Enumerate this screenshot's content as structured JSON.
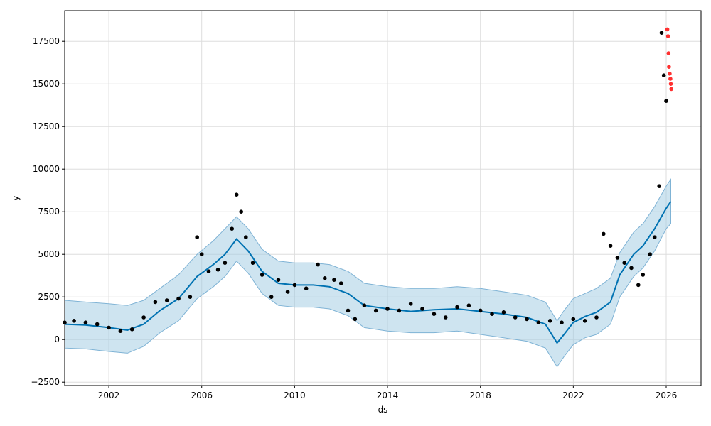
{
  "chart_data": {
    "type": "scatter",
    "xlabel": "ds",
    "ylabel": "y",
    "xlim": [
      2000.1,
      2027.5
    ],
    "ylim": [
      -2700,
      19300
    ],
    "x_ticks": [
      2002,
      2006,
      2010,
      2014,
      2018,
      2022,
      2026
    ],
    "x_tick_labels": [
      "2002",
      "2006",
      "2010",
      "2014",
      "2018",
      "2022",
      "2026"
    ],
    "y_ticks": [
      -2500,
      0,
      2500,
      5000,
      7500,
      10000,
      12500,
      15000,
      17500
    ],
    "y_tick_labels": [
      "−2500",
      "0",
      "2500",
      "5000",
      "7500",
      "10000",
      "12500",
      "15000",
      "17500"
    ],
    "grid": true,
    "colors": {
      "observed": "#000000",
      "holdout": "#ff3030",
      "forecast": "#0072b2",
      "interval": "#9ecae1",
      "interval_edge": "#7fb3d5",
      "grid": "#dddddd"
    },
    "series": [
      {
        "role": "forecast-line",
        "x": [
          2000.1,
          2001.0,
          2002.0,
          2002.8,
          2003.5,
          2004.2,
          2005.0,
          2005.8,
          2006.5,
          2007.0,
          2007.5,
          2008.0,
          2008.6,
          2009.3,
          2010.0,
          2010.8,
          2011.5,
          2012.3,
          2013.0,
          2014.0,
          2015.0,
          2016.0,
          2017.0,
          2018.0,
          2019.0,
          2020.0,
          2020.8,
          2021.3,
          2021.6,
          2022.0,
          2022.5,
          2023.0,
          2023.6,
          2024.0,
          2024.6,
          2025.0,
          2025.5,
          2026.0,
          2026.2
        ],
        "y": [
          900,
          850,
          700,
          550,
          900,
          1700,
          2400,
          3700,
          4400,
          5000,
          5900,
          5200,
          4000,
          3300,
          3200,
          3200,
          3100,
          2700,
          2000,
          1800,
          1650,
          1750,
          1800,
          1650,
          1500,
          1300,
          900,
          -200,
          300,
          1000,
          1350,
          1600,
          2200,
          3800,
          5000,
          5500,
          6500,
          7700,
          8100
        ]
      },
      {
        "role": "interval-upper",
        "x": [
          2000.1,
          2001.0,
          2002.0,
          2002.8,
          2003.5,
          2004.2,
          2005.0,
          2005.8,
          2006.5,
          2007.0,
          2007.5,
          2008.0,
          2008.6,
          2009.3,
          2010.0,
          2010.8,
          2011.5,
          2012.3,
          2013.0,
          2014.0,
          2015.0,
          2016.0,
          2017.0,
          2018.0,
          2019.0,
          2020.0,
          2020.8,
          2021.3,
          2021.6,
          2022.0,
          2022.5,
          2023.0,
          2023.6,
          2024.0,
          2024.6,
          2025.0,
          2025.5,
          2026.0,
          2026.2
        ],
        "y": [
          2300,
          2200,
          2100,
          2000,
          2300,
          3000,
          3800,
          5000,
          5800,
          6500,
          7200,
          6500,
          5300,
          4600,
          4500,
          4500,
          4400,
          4000,
          3300,
          3100,
          3000,
          3000,
          3100,
          3000,
          2800,
          2600,
          2200,
          1100,
          1700,
          2400,
          2700,
          3000,
          3600,
          5100,
          6300,
          6800,
          7800,
          9000,
          9400
        ]
      },
      {
        "role": "interval-lower",
        "x": [
          2000.1,
          2001.0,
          2002.0,
          2002.8,
          2003.5,
          2004.2,
          2005.0,
          2005.8,
          2006.5,
          2007.0,
          2007.5,
          2008.0,
          2008.6,
          2009.3,
          2010.0,
          2010.8,
          2011.5,
          2012.3,
          2013.0,
          2014.0,
          2015.0,
          2016.0,
          2017.0,
          2018.0,
          2019.0,
          2020.0,
          2020.8,
          2021.3,
          2021.6,
          2022.0,
          2022.5,
          2023.0,
          2023.6,
          2024.0,
          2024.6,
          2025.0,
          2025.5,
          2026.0,
          2026.2
        ],
        "y": [
          -500,
          -550,
          -700,
          -800,
          -400,
          400,
          1100,
          2400,
          3100,
          3700,
          4600,
          3900,
          2700,
          2000,
          1900,
          1900,
          1800,
          1400,
          700,
          500,
          400,
          400,
          500,
          300,
          100,
          -100,
          -500,
          -1600,
          -1000,
          -300,
          100,
          300,
          900,
          2500,
          3700,
          4200,
          5200,
          6500,
          6800
        ]
      },
      {
        "role": "observed",
        "x": [
          2000.1,
          2000.5,
          2001.0,
          2001.5,
          2002.0,
          2002.5,
          2003.0,
          2003.5,
          2004.0,
          2004.5,
          2005.0,
          2005.5,
          2005.8,
          2006.0,
          2006.3,
          2006.7,
          2007.0,
          2007.3,
          2007.5,
          2007.7,
          2007.9,
          2008.2,
          2008.6,
          2009.0,
          2009.3,
          2009.7,
          2010.0,
          2010.5,
          2011.0,
          2011.3,
          2011.7,
          2012.0,
          2012.3,
          2012.6,
          2013.0,
          2013.5,
          2014.0,
          2014.5,
          2015.0,
          2015.5,
          2016.0,
          2016.5,
          2017.0,
          2017.5,
          2018.0,
          2018.5,
          2019.0,
          2019.5,
          2020.0,
          2020.5,
          2021.0,
          2021.5,
          2022.0,
          2022.5,
          2023.0,
          2023.3,
          2023.6,
          2023.9,
          2024.2,
          2024.5,
          2024.8,
          2025.0,
          2025.3,
          2025.5,
          2025.7,
          2025.8,
          2025.9,
          2026.0
        ],
        "y": [
          1000,
          1100,
          1000,
          900,
          700,
          500,
          600,
          1300,
          2200,
          2300,
          2400,
          2500,
          6000,
          5000,
          4000,
          4100,
          4500,
          6500,
          8500,
          7500,
          6000,
          4500,
          3800,
          2500,
          3500,
          2800,
          3200,
          3000,
          4400,
          3600,
          3500,
          3300,
          1700,
          1200,
          2000,
          1700,
          1800,
          1700,
          2100,
          1800,
          1500,
          1300,
          1900,
          2000,
          1700,
          1500,
          1600,
          1300,
          1200,
          1000,
          1100,
          1000,
          1200,
          1100,
          1300,
          6200,
          5500,
          4800,
          4500,
          4200,
          3200,
          3800,
          5000,
          6000,
          9000,
          18000,
          15500,
          14000
        ]
      },
      {
        "role": "holdout",
        "x": [
          2026.05,
          2026.08,
          2026.1,
          2026.12,
          2026.15,
          2026.18,
          2026.2,
          2026.22
        ],
        "y": [
          18200,
          17800,
          16800,
          16000,
          15600,
          15300,
          15000,
          14700
        ]
      }
    ]
  }
}
